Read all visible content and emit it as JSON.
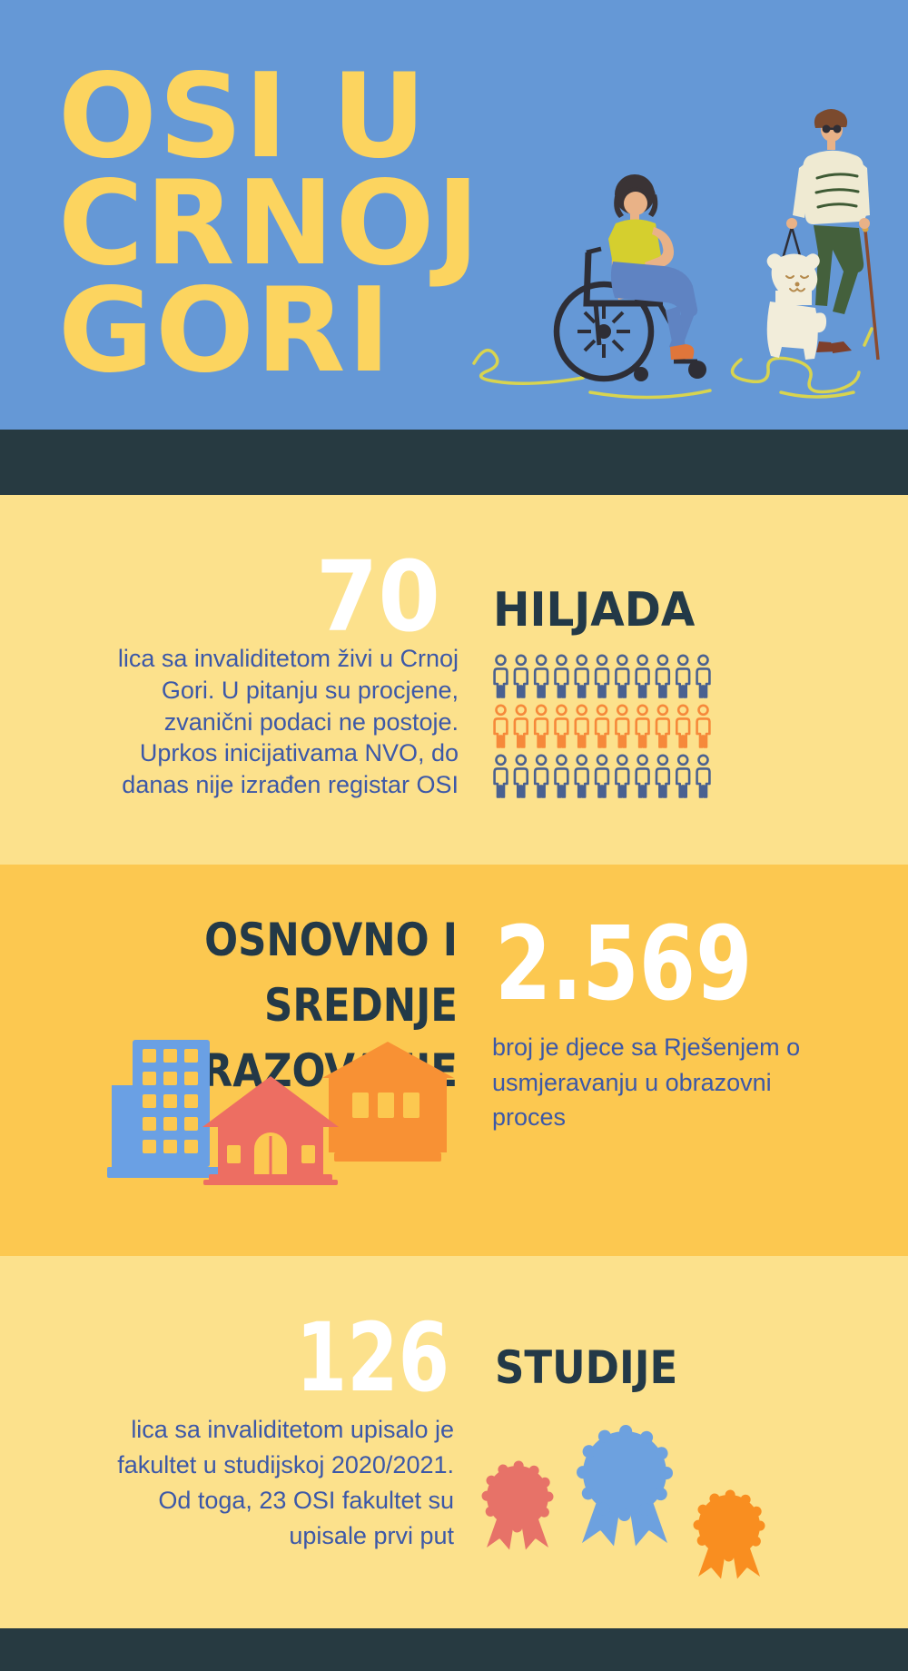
{
  "header": {
    "title": "OSI U\nCRNOJ\nGORI"
  },
  "population": {
    "number": "70",
    "unit": "HILJADA",
    "text": "lica sa invaliditetom živi u Crnoj\nGori. U pitanju su procjene,\nzvanični podaci ne postoje.\nUprkos inicijativama NVO, do\ndanas nije izrađen registar OSI",
    "pictograph": {
      "rows": [
        {
          "count": 11,
          "color": "#4A6190"
        },
        {
          "count": 11,
          "color": "#F6893A"
        },
        {
          "count": 11,
          "color": "#4A6190"
        }
      ]
    }
  },
  "education": {
    "heading": "OSNOVNO I SREDNJE\nOBRAZOVANJE",
    "number": "2.569",
    "text": "broj je djece sa Rješenjem o\nusmjeravanju u obrazovni\nproces"
  },
  "studies": {
    "number": "126",
    "label": "STUDIJE",
    "text": "lica sa invaliditetom upisalo je\nfakultet u studijskoj 2020/2021.\nOd toga, 23 OSI fakultet su\nupisale prvi put",
    "rosettes": [
      {
        "name": "rosette-salmon",
        "color": "#E77268"
      },
      {
        "name": "rosette-blue",
        "color": "#6DA1DF"
      },
      {
        "name": "rosette-orange",
        "color": "#F98E20"
      }
    ]
  },
  "palette": {
    "hero_background": "#6598D6",
    "title_yellow": "#FCD45F",
    "divider_dark": "#273A41",
    "section_light_yellow": "#FCE18C",
    "section_dark_yellow": "#FCC850",
    "heading_navy": "#233947",
    "body_text_blue": "#3C58A8",
    "number_white": "#FFFFFF"
  },
  "chart_data": {
    "type": "table",
    "title": "OSI u Crnoj Gori",
    "rows": [
      [
        "70 hiljada",
        "lica sa invaliditetom živi u Crnoj Gori (procjene, zvanični podaci ne postoje; registar OSI nije izrađen)"
      ],
      [
        "2.569",
        "broj djece sa Rješenjem o usmjeravanju u obrazovni proces (osnovno i srednje obrazovanje)"
      ],
      [
        "126",
        "lica sa invaliditetom upisalo fakultet u studijskoj 2020/2021; od toga 23 prvi put"
      ]
    ],
    "pictograph_units": {
      "rows": 3,
      "icons_per_row": 11,
      "row_colors": [
        "#4A6190",
        "#F6893A",
        "#4A6190"
      ]
    }
  }
}
